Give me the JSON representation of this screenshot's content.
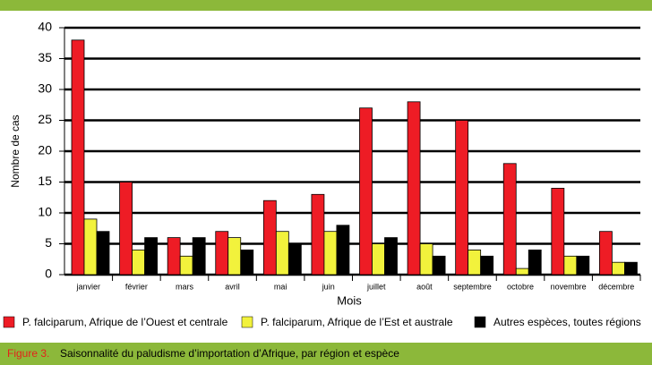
{
  "chart_data": {
    "type": "bar",
    "y_label": "Nombre de cas",
    "x_label": "Mois",
    "caption_label": "Figure 3.",
    "caption": "Saisonnalité du paludisme d’importation d’Afrique, par région et espèce",
    "categories": [
      "janvier",
      "février",
      "mars",
      "avril",
      "mai",
      "juin",
      "juillet",
      "août",
      "septembre",
      "octobre",
      "novembre",
      "décembre"
    ],
    "series": [
      {
        "name": "P. falciparum, Afrique de l’Ouest et centrale",
        "color": "#ee1c25",
        "values": [
          38,
          15,
          6,
          7,
          12,
          13,
          27,
          28,
          25,
          18,
          14,
          7
        ]
      },
      {
        "name": "P. falciparum, Afrique de l’Est et australe",
        "color": "#f2f23c",
        "values": [
          9,
          4,
          3,
          6,
          7,
          7,
          5,
          5,
          4,
          1,
          3,
          2
        ]
      },
      {
        "name": "Autres espèces, toutes régions",
        "color": "#000000",
        "values": [
          7,
          6,
          6,
          4,
          5,
          8,
          6,
          3,
          3,
          4,
          3,
          2
        ]
      }
    ],
    "ylim": [
      0,
      40
    ],
    "yticks": [
      0,
      5,
      10,
      15,
      20,
      25,
      30,
      35,
      40
    ],
    "grid": true
  }
}
